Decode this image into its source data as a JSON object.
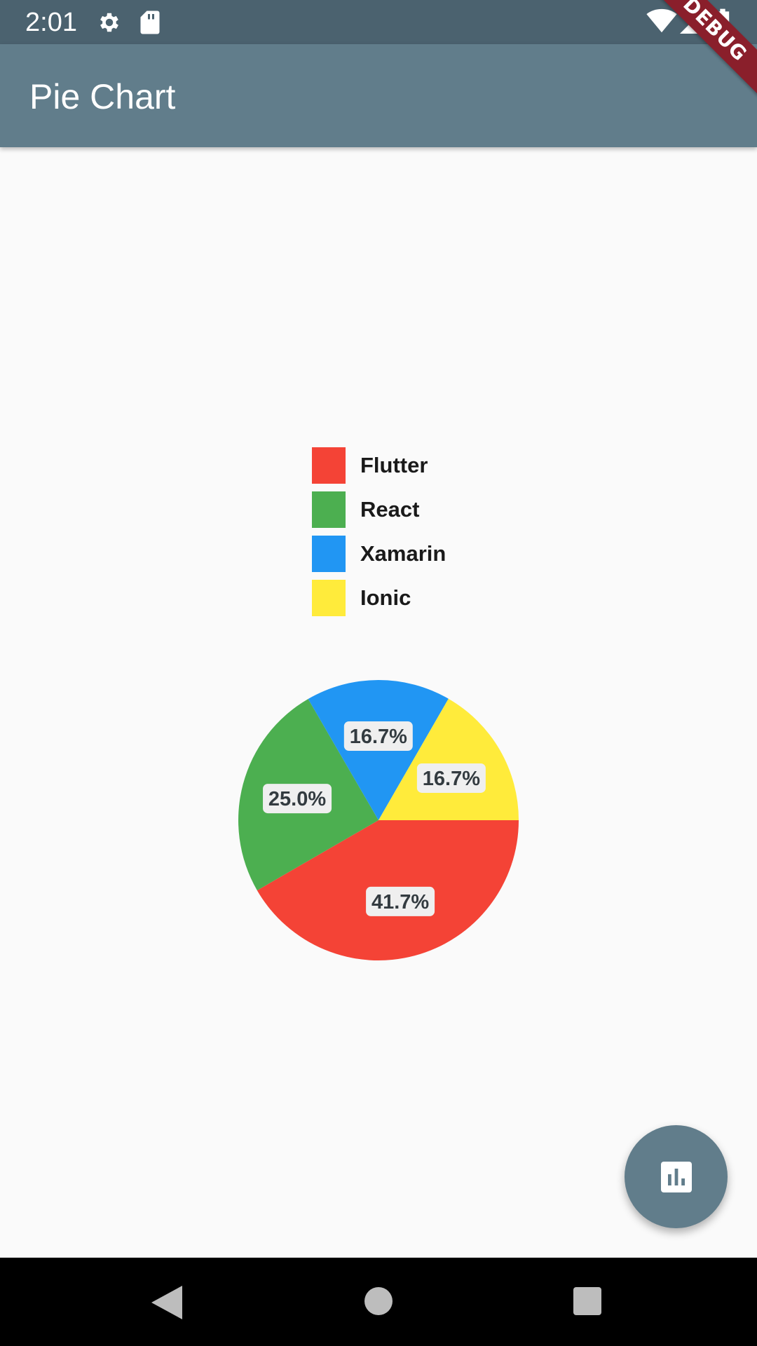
{
  "status_bar": {
    "time": "2:01",
    "icons": [
      "gear-icon",
      "sd-card-icon",
      "wifi-icon",
      "signal-icon",
      "battery-icon"
    ]
  },
  "app_bar": {
    "title": "Pie Chart"
  },
  "debug_banner": {
    "label": "DEBUG"
  },
  "legend": [
    {
      "label": "Flutter",
      "color": "#f44336"
    },
    {
      "label": "React",
      "color": "#4caf50"
    },
    {
      "label": "Xamarin",
      "color": "#2196f3"
    },
    {
      "label": "Ionic",
      "color": "#ffeb3b"
    }
  ],
  "chart_data": {
    "type": "pie",
    "slices": [
      {
        "name": "Flutter",
        "value": 41.7,
        "label": "41.7%",
        "color": "#f44336"
      },
      {
        "name": "React",
        "value": 25.0,
        "label": "25.0%",
        "color": "#4caf50"
      },
      {
        "name": "Xamarin",
        "value": 16.7,
        "label": "16.7%",
        "color": "#2196f3"
      },
      {
        "name": "Ionic",
        "value": 16.7,
        "label": "16.7%",
        "color": "#ffeb3b"
      }
    ],
    "legend_placement": "top"
  },
  "fab": {
    "icon": "bar-chart-icon"
  },
  "nav_bar": {
    "buttons": [
      "back-icon",
      "home-icon",
      "recents-icon"
    ]
  }
}
